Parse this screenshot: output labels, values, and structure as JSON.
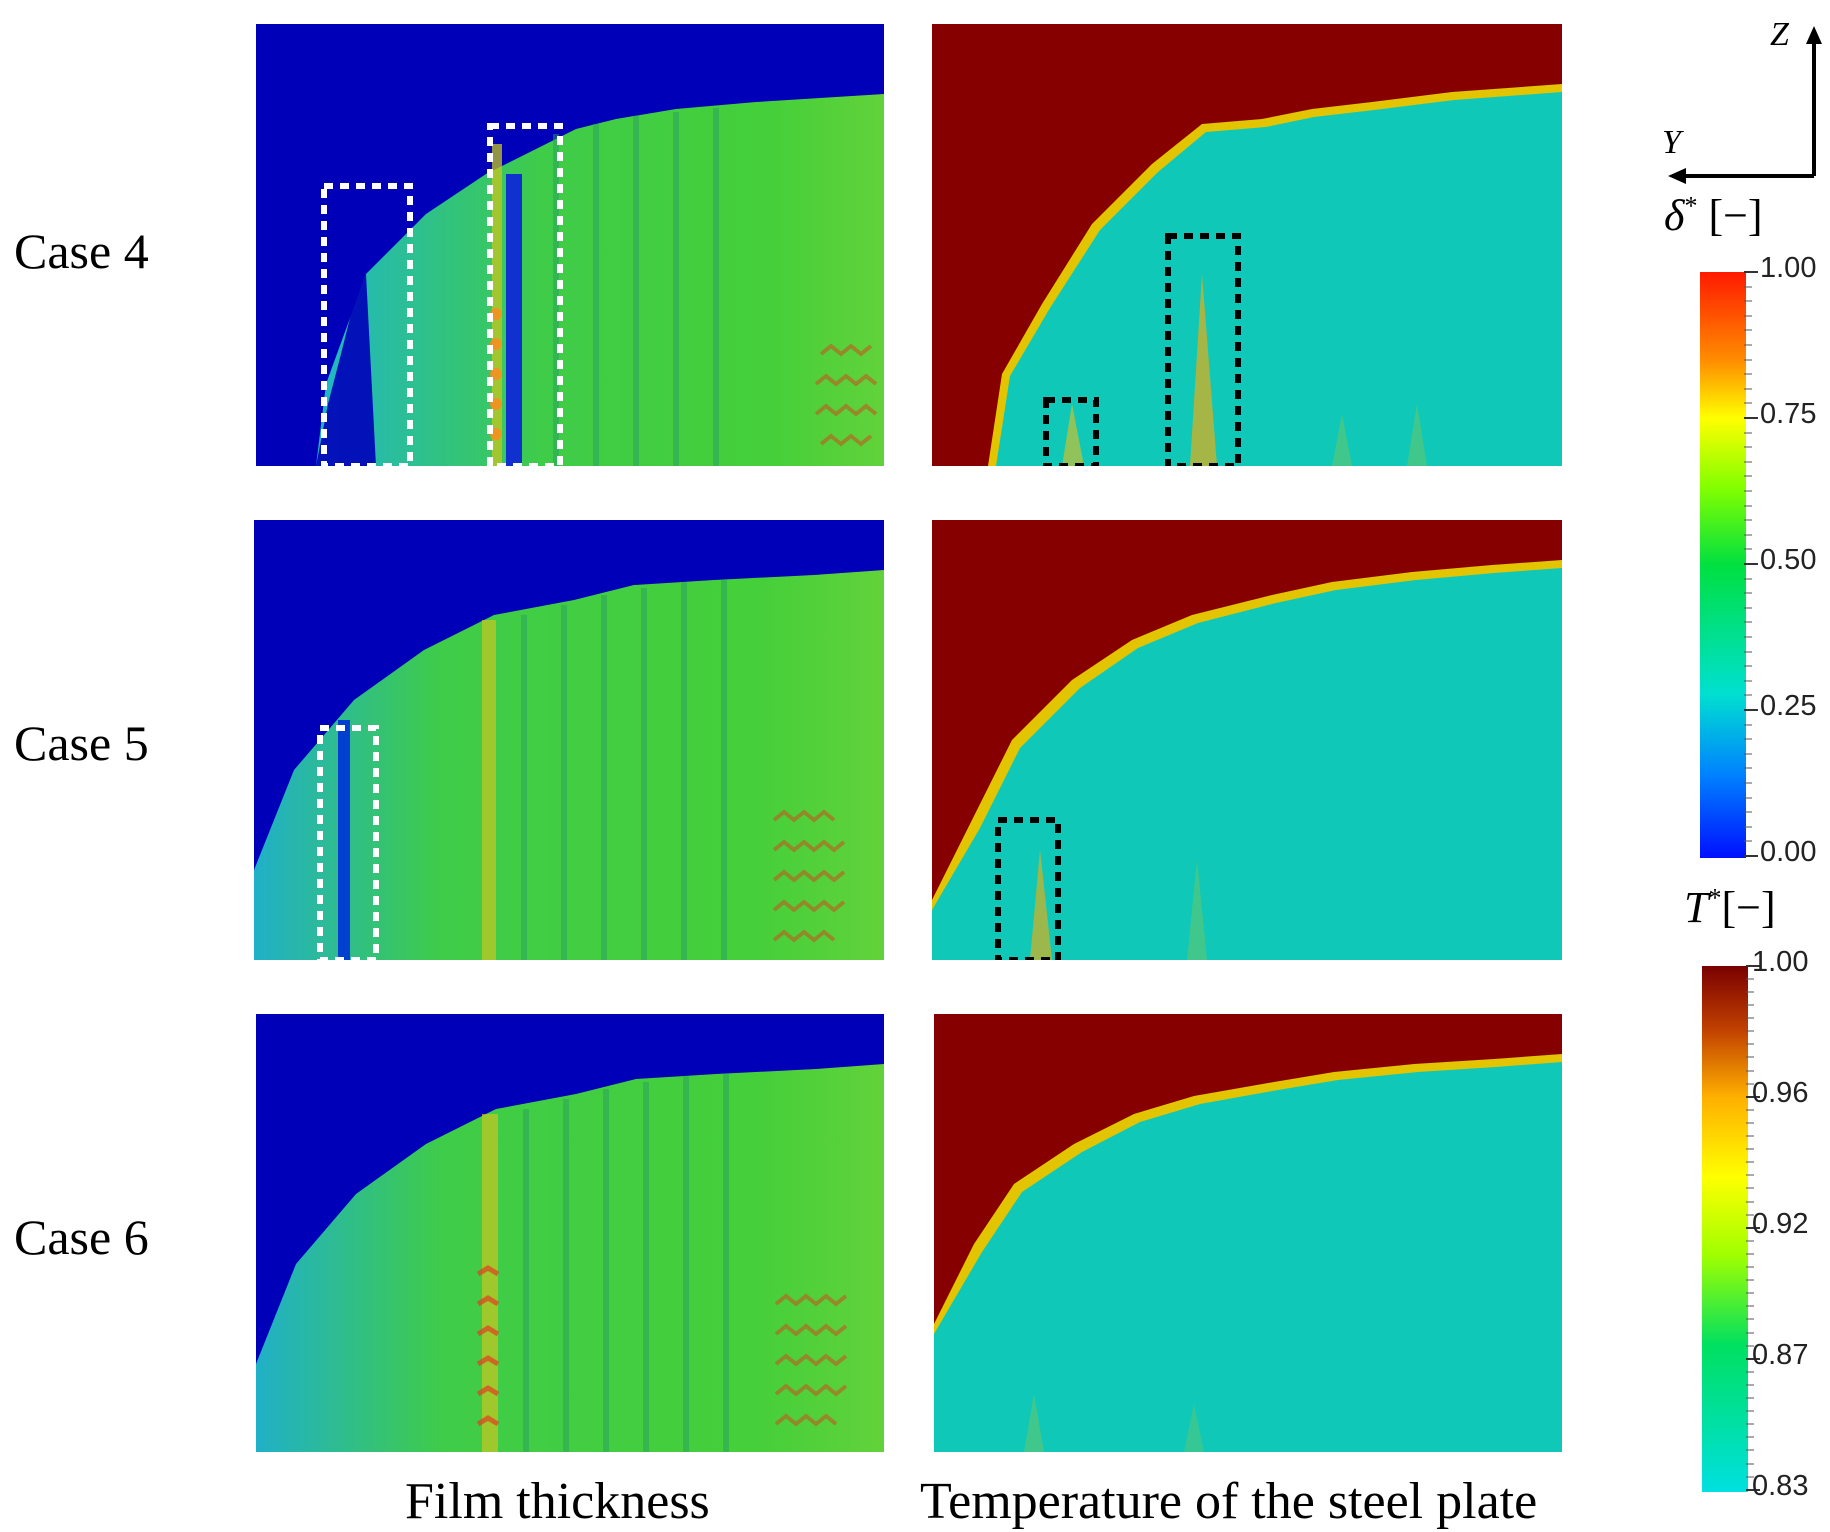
{
  "figure": {
    "rows": [
      {
        "label": "Case 4"
      },
      {
        "label": "Case 5"
      },
      {
        "label": "Case 6"
      }
    ],
    "columns": [
      {
        "label": "Film thickness"
      },
      {
        "label": "Temperature of the steel plate"
      }
    ]
  },
  "axes": {
    "z_label": "Z",
    "y_label": "Y"
  },
  "colorbars": {
    "film": {
      "title_symbol": "δ",
      "title_sup": "*",
      "title_unit": " [−]",
      "tick_labels": [
        "1.00",
        "0.75",
        "0.50",
        "0.25",
        "0.00"
      ],
      "range": [
        0.0,
        1.0
      ]
    },
    "temperature": {
      "title_symbol": "T",
      "title_sup": "*",
      "title_unit": "[−]",
      "tick_labels": [
        "1.00",
        "0.96",
        "0.92",
        "0.87",
        "0.83"
      ],
      "range": [
        0.83,
        1.0
      ]
    }
  },
  "colors": {
    "background_film": "#0000b8",
    "film_fill": "#3fcf3a",
    "temp_hot": "#870000",
    "temp_cool": "#10c8b8",
    "highlight_box_film": "#ffffff",
    "highlight_box_temp": "#000000"
  }
}
